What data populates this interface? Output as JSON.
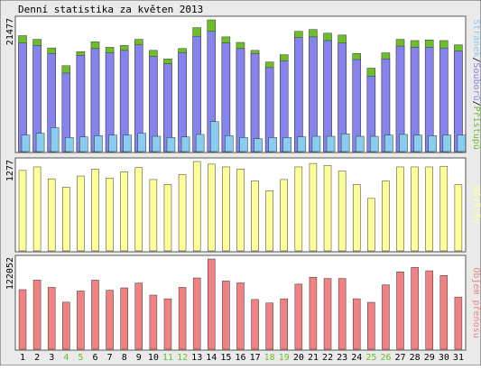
{
  "title": "Denní statistika za květen 2013",
  "colors": {
    "frame_bg": "#eaeaea",
    "page_bg": "#ffffff",
    "pristupu": "#6cbf2a",
    "souboru": "#8484ec",
    "stranek": "#88ccf0",
    "navstev": "#ffff99",
    "objem": "#f08284",
    "weekend_label": "#6cbf2a",
    "weekday_label": "#000000"
  },
  "chart_data": [
    {
      "type": "bar",
      "name": "hits",
      "ymax_label": "21477",
      "ylim": [
        0,
        21477
      ],
      "legend": [
        {
          "text": "Stránek",
          "color_key": "stranek"
        },
        {
          "text": "/",
          "color_key": "weekday_label"
        },
        {
          "text": "Souborů",
          "color_key": "souboru"
        },
        {
          "text": "/",
          "color_key": "weekday_label"
        },
        {
          "text": "Přístupů",
          "color_key": "pristupu"
        }
      ],
      "series": [
        {
          "name": "Přístupů",
          "color_key": "pristupu",
          "values": [
            18900,
            18300,
            16900,
            14000,
            16300,
            17900,
            17000,
            17300,
            18300,
            16500,
            15100,
            16800,
            20200,
            21477,
            18700,
            17800,
            16500,
            14600,
            15800,
            19600,
            19900,
            19300,
            19000,
            16000,
            13600,
            16100,
            18300,
            18100,
            18200,
            18100,
            17400
          ]
        },
        {
          "name": "Souborů",
          "color_key": "souboru",
          "values": [
            17700,
            17300,
            16000,
            12800,
            15700,
            16800,
            16100,
            16500,
            17400,
            15500,
            14300,
            16100,
            18800,
            19600,
            17700,
            16800,
            16000,
            13700,
            14800,
            18600,
            18700,
            18100,
            17700,
            15000,
            12300,
            15100,
            17200,
            17000,
            17000,
            16900,
            16400
          ]
        },
        {
          "name": "Stránek",
          "color_key": "stranek",
          "values": [
            2700,
            3000,
            3900,
            2300,
            2400,
            2600,
            2700,
            2700,
            3000,
            2500,
            2300,
            2400,
            2800,
            4900,
            2600,
            2300,
            2100,
            2300,
            2300,
            2400,
            2500,
            2500,
            2900,
            2500,
            2500,
            2700,
            2800,
            2700,
            2600,
            2700,
            2700
          ]
        }
      ]
    },
    {
      "type": "bar",
      "name": "visits",
      "ymax_label": "1277",
      "ylim": [
        0,
        1277
      ],
      "legend": [
        {
          "text": "Návštěv",
          "color_key": "navstev"
        }
      ],
      "series": [
        {
          "name": "Návštěv",
          "color_key": "navstev",
          "values": [
            1150,
            1200,
            1030,
            910,
            1070,
            1170,
            1040,
            1130,
            1190,
            1020,
            950,
            1090,
            1277,
            1240,
            1200,
            1170,
            1000,
            860,
            1020,
            1200,
            1250,
            1220,
            1140,
            950,
            750,
            1000,
            1200,
            1200,
            1200,
            1210,
            945
          ]
        }
      ]
    },
    {
      "type": "bar",
      "name": "transfer",
      "ymax_label": "122052",
      "ylim": [
        0,
        122052
      ],
      "legend": [
        {
          "text": "Objem přenosu",
          "color_key": "objem"
        }
      ],
      "series": [
        {
          "name": "Objem přenosu",
          "color_key": "objem",
          "values": [
            80600,
            93500,
            83700,
            63700,
            78800,
            93500,
            79800,
            83000,
            89600,
            73200,
            68200,
            83700,
            96400,
            122052,
            92300,
            89700,
            67300,
            62600,
            68200,
            88100,
            97400,
            95700,
            95700,
            68300,
            63400,
            87100,
            104600,
            110800,
            106100,
            99800,
            70600
          ]
        }
      ]
    }
  ],
  "days": [
    "1",
    "2",
    "3",
    "4",
    "5",
    "6",
    "7",
    "8",
    "9",
    "10",
    "11",
    "12",
    "13",
    "14",
    "15",
    "16",
    "17",
    "18",
    "19",
    "20",
    "21",
    "22",
    "23",
    "24",
    "25",
    "26",
    "27",
    "28",
    "29",
    "30",
    "31"
  ],
  "weekend_days": [
    "4",
    "5",
    "11",
    "12",
    "18",
    "19",
    "25",
    "26"
  ]
}
